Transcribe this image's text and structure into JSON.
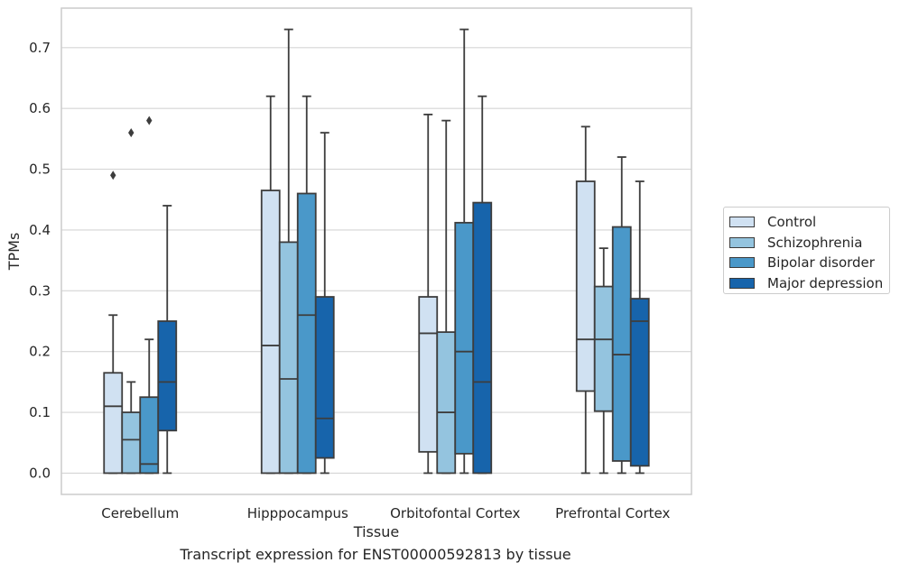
{
  "caption": "Transcript expression for ENST00000592813 by tissue",
  "chart_data": {
    "type": "boxplot",
    "xlabel": "Tissue",
    "ylabel": "TPMs",
    "ylim": [
      -0.035,
      0.765
    ],
    "yticks": [
      0.0,
      0.1,
      0.2,
      0.3,
      0.4,
      0.5,
      0.6,
      0.7
    ],
    "ytick_labels": [
      "0.0",
      "0.1",
      "0.2",
      "0.3",
      "0.4",
      "0.5",
      "0.6",
      "0.7"
    ],
    "grid": true,
    "legend_position": "right",
    "categories": [
      "Cerebellum",
      "Hipppocampus",
      "Orbitofontal Cortex",
      "Prefrontal Cortex"
    ],
    "series": [
      {
        "name": "Control",
        "color": "#d0e1f2",
        "boxes": [
          {
            "whislo": 0.0,
            "q1": 0.0,
            "med": 0.11,
            "q3": 0.165,
            "whishi": 0.26,
            "fliers": [
              0.49
            ]
          },
          {
            "whislo": 0.0,
            "q1": 0.0,
            "med": 0.21,
            "q3": 0.465,
            "whishi": 0.62,
            "fliers": []
          },
          {
            "whislo": 0.0,
            "q1": 0.035,
            "med": 0.23,
            "q3": 0.29,
            "whishi": 0.59,
            "fliers": []
          },
          {
            "whislo": 0.0,
            "q1": 0.135,
            "med": 0.22,
            "q3": 0.48,
            "whishi": 0.57,
            "fliers": []
          }
        ]
      },
      {
        "name": "Schizophrenia",
        "color": "#94c4df",
        "boxes": [
          {
            "whislo": 0.0,
            "q1": 0.0,
            "med": 0.055,
            "q3": 0.1,
            "whishi": 0.15,
            "fliers": [
              0.56
            ]
          },
          {
            "whislo": 0.0,
            "q1": 0.0,
            "med": 0.155,
            "q3": 0.38,
            "whishi": 0.73,
            "fliers": []
          },
          {
            "whislo": 0.0,
            "q1": 0.0,
            "med": 0.1,
            "q3": 0.232,
            "whishi": 0.58,
            "fliers": []
          },
          {
            "whislo": 0.0,
            "q1": 0.102,
            "med": 0.22,
            "q3": 0.307,
            "whishi": 0.37,
            "fliers": []
          }
        ]
      },
      {
        "name": "Bipolar disorder",
        "color": "#4a98c9",
        "boxes": [
          {
            "whislo": 0.0,
            "q1": 0.0,
            "med": 0.015,
            "q3": 0.125,
            "whishi": 0.22,
            "fliers": [
              0.58
            ]
          },
          {
            "whislo": 0.0,
            "q1": 0.0,
            "med": 0.26,
            "q3": 0.46,
            "whishi": 0.62,
            "fliers": []
          },
          {
            "whislo": 0.0,
            "q1": 0.032,
            "med": 0.2,
            "q3": 0.412,
            "whishi": 0.73,
            "fliers": []
          },
          {
            "whislo": 0.0,
            "q1": 0.02,
            "med": 0.195,
            "q3": 0.405,
            "whishi": 0.52,
            "fliers": []
          }
        ]
      },
      {
        "name": "Major depression",
        "color": "#1764ab",
        "boxes": [
          {
            "whislo": 0.0,
            "q1": 0.07,
            "med": 0.15,
            "q3": 0.25,
            "whishi": 0.44,
            "fliers": []
          },
          {
            "whislo": 0.0,
            "q1": 0.025,
            "med": 0.09,
            "q3": 0.29,
            "whishi": 0.56,
            "fliers": []
          },
          {
            "whislo": 0.0,
            "q1": 0.0,
            "med": 0.15,
            "q3": 0.445,
            "whishi": 0.62,
            "fliers": []
          },
          {
            "whislo": 0.0,
            "q1": 0.012,
            "med": 0.25,
            "q3": 0.287,
            "whishi": 0.48,
            "fliers": []
          }
        ]
      }
    ]
  }
}
